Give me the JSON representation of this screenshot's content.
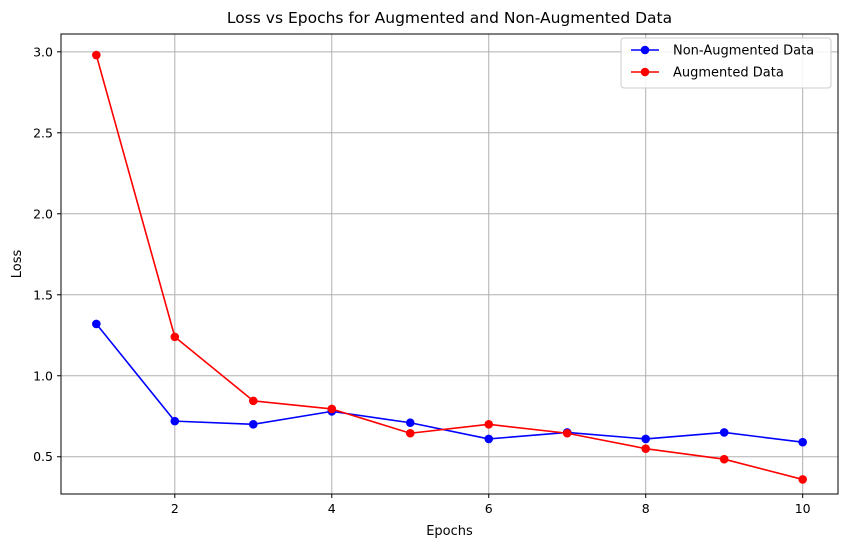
{
  "chart_data": {
    "type": "line",
    "title": "Loss vs Epochs for Augmented and Non-Augmented Data",
    "xlabel": "Epochs",
    "ylabel": "Loss",
    "x": [
      1,
      2,
      3,
      4,
      5,
      6,
      7,
      8,
      9,
      10
    ],
    "xlim": [
      0.55,
      10.45
    ],
    "ylim": [
      0.27,
      3.11
    ],
    "xticks": [
      2,
      4,
      6,
      8,
      10
    ],
    "xtick_labels": [
      "2",
      "4",
      "6",
      "8",
      "10"
    ],
    "yticks": [
      0.5,
      1.0,
      1.5,
      2.0,
      2.5,
      3.0
    ],
    "ytick_labels": [
      "0.5",
      "1.0",
      "1.5",
      "2.0",
      "2.5",
      "3.0"
    ],
    "grid": true,
    "legend_position": "top-right",
    "series": [
      {
        "name": "Non-Augmented Data",
        "color": "#0000ff",
        "marker": "circle",
        "values": [
          1.32,
          0.72,
          0.7,
          0.78,
          0.71,
          0.61,
          0.65,
          0.61,
          0.65,
          0.59
        ]
      },
      {
        "name": "Augmented Data",
        "color": "#ff0000",
        "marker": "circle",
        "values": [
          2.98,
          1.24,
          0.845,
          0.795,
          0.645,
          0.7,
          0.645,
          0.55,
          0.485,
          0.36
        ]
      }
    ]
  }
}
